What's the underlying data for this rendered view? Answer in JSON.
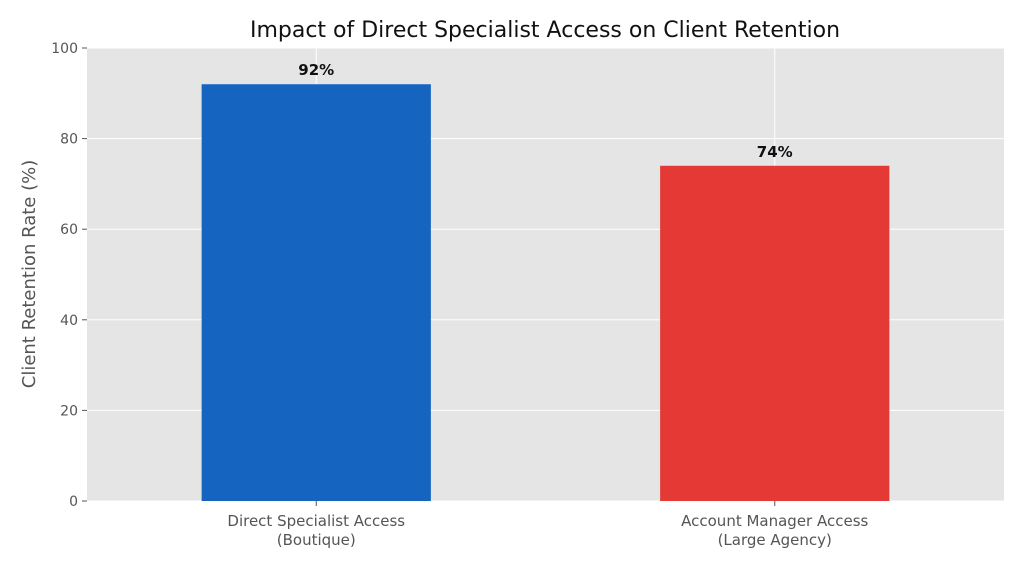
{
  "chart_data": {
    "type": "bar",
    "title": "Impact of Direct Specialist Access on Client Retention",
    "xlabel": "",
    "ylabel": "Client Retention Rate (%)",
    "ylim": [
      0,
      100
    ],
    "yticks": [
      0,
      20,
      40,
      60,
      80,
      100
    ],
    "grid": true,
    "categories": [
      [
        "Direct Specialist Access",
        "(Boutique)"
      ],
      [
        "Account Manager Access",
        "(Large Agency)"
      ]
    ],
    "values": [
      92,
      74
    ],
    "data_labels": [
      "92%",
      "74%"
    ],
    "colors": [
      "#1565c0",
      "#e53935"
    ],
    "plot_background": "#e5e5e5",
    "grid_color": "#ffffff"
  }
}
